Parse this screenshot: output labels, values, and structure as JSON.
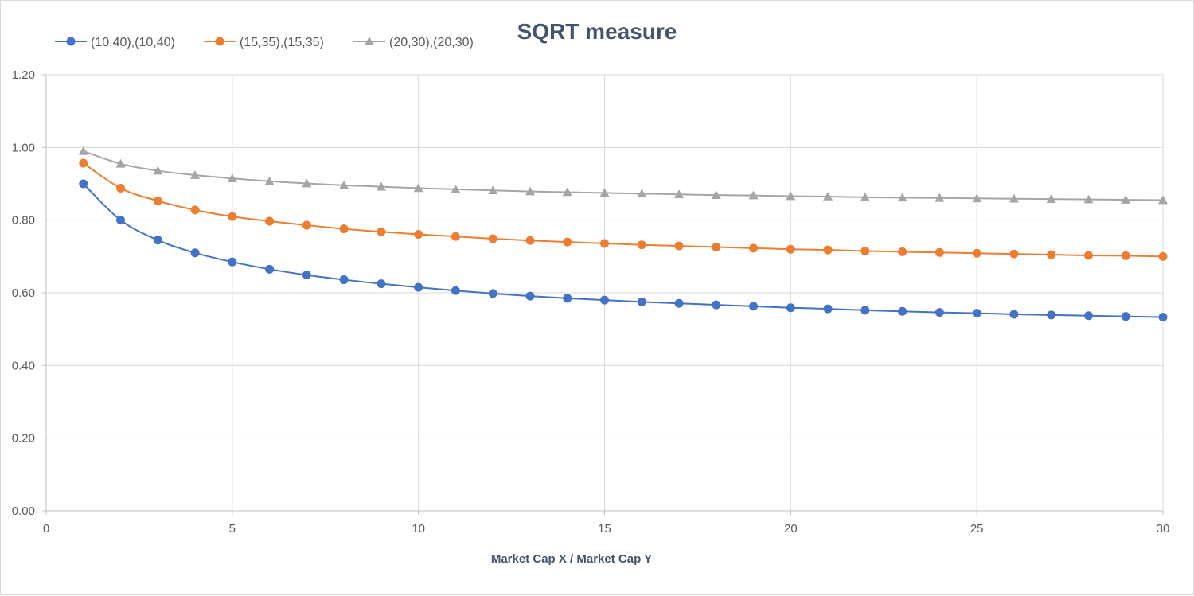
{
  "chart_data": {
    "type": "line",
    "title": "SQRT measure",
    "xlabel": "Market Cap X / Market Cap Y",
    "ylabel": "",
    "xlim": [
      0,
      30
    ],
    "ylim": [
      0,
      1.2
    ],
    "x_ticks": [
      "0",
      "5",
      "10",
      "15",
      "20",
      "25",
      "30"
    ],
    "y_ticks": [
      "0.00",
      "0.20",
      "0.40",
      "0.60",
      "0.80",
      "1.00",
      "1.20"
    ],
    "grid": true,
    "legend_position": "top-left",
    "x": [
      1,
      2,
      3,
      4,
      5,
      6,
      7,
      8,
      9,
      10,
      11,
      12,
      13,
      14,
      15,
      16,
      17,
      18,
      19,
      20,
      21,
      22,
      23,
      24,
      25,
      26,
      27,
      28,
      29,
      30
    ],
    "series": [
      {
        "name": "(10,40),(10,40)",
        "color": "#4472c4",
        "marker": "circle",
        "values": [
          0.9,
          0.8,
          0.745,
          0.71,
          0.685,
          0.665,
          0.649,
          0.636,
          0.625,
          0.615,
          0.606,
          0.598,
          0.591,
          0.585,
          0.58,
          0.575,
          0.571,
          0.567,
          0.563,
          0.559,
          0.556,
          0.552,
          0.549,
          0.546,
          0.544,
          0.541,
          0.539,
          0.537,
          0.535,
          0.533
        ]
      },
      {
        "name": "(15,35),(15,35)",
        "color": "#ed7d31",
        "marker": "circle",
        "values": [
          0.957,
          0.888,
          0.853,
          0.828,
          0.81,
          0.797,
          0.786,
          0.776,
          0.768,
          0.761,
          0.755,
          0.749,
          0.744,
          0.74,
          0.736,
          0.732,
          0.729,
          0.726,
          0.723,
          0.72,
          0.718,
          0.715,
          0.713,
          0.711,
          0.709,
          0.707,
          0.705,
          0.703,
          0.702,
          0.7
        ]
      },
      {
        "name": "(20,30),(20,30)",
        "color": "#a5a5a5",
        "marker": "triangle",
        "values": [
          0.99,
          0.955,
          0.936,
          0.924,
          0.915,
          0.907,
          0.901,
          0.896,
          0.892,
          0.888,
          0.885,
          0.882,
          0.879,
          0.877,
          0.875,
          0.873,
          0.871,
          0.869,
          0.868,
          0.866,
          0.865,
          0.863,
          0.862,
          0.861,
          0.86,
          0.859,
          0.858,
          0.857,
          0.856,
          0.855
        ]
      }
    ]
  }
}
